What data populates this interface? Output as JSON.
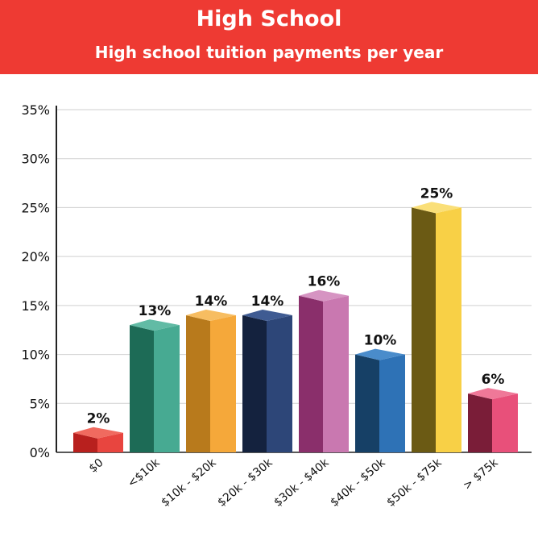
{
  "header": {
    "title": "High School",
    "subtitle": "High school tuition payments per year"
  },
  "chart_data": {
    "type": "bar",
    "title": "High School",
    "subtitle": "High school tuition payments per year",
    "categories": [
      "$0",
      "<$10k",
      "$10k - $20k",
      "$20k - $30k",
      "$30k - $40k",
      "$40k - $50k",
      "$50k - $75k",
      "> $75k"
    ],
    "values": [
      2,
      13,
      14,
      14,
      16,
      10,
      25,
      6
    ],
    "value_labels": [
      "2%",
      "13%",
      "14%",
      "14%",
      "16%",
      "10%",
      "25%",
      "6%"
    ],
    "ylim": [
      0,
      35
    ],
    "yticks": [
      0,
      5,
      10,
      15,
      20,
      25,
      30,
      35
    ],
    "ytick_labels": [
      "0%",
      "5%",
      "10%",
      "15%",
      "20%",
      "25%",
      "30%",
      "35%"
    ],
    "grid": true,
    "legend": "none",
    "colors": [
      {
        "front": "#b8201e",
        "side": "#e8453f",
        "top": "#f06a5f"
      },
      {
        "front": "#1d6b56",
        "side": "#47aa92",
        "top": "#62bba5"
      },
      {
        "front": "#b87a1c",
        "side": "#f5a83a",
        "top": "#f7bd61"
      },
      {
        "front": "#14223e",
        "side": "#2d4678",
        "top": "#3f5b92"
      },
      {
        "front": "#8a2f6b",
        "side": "#c978b0",
        "top": "#d694c2"
      },
      {
        "front": "#164066",
        "side": "#2e72b6",
        "top": "#4a8ccb"
      },
      {
        "front": "#6b5a14",
        "side": "#f8d046",
        "top": "#fadf78"
      },
      {
        "front": "#7a1d38",
        "side": "#e8507a",
        "top": "#ef7898"
      }
    ]
  }
}
